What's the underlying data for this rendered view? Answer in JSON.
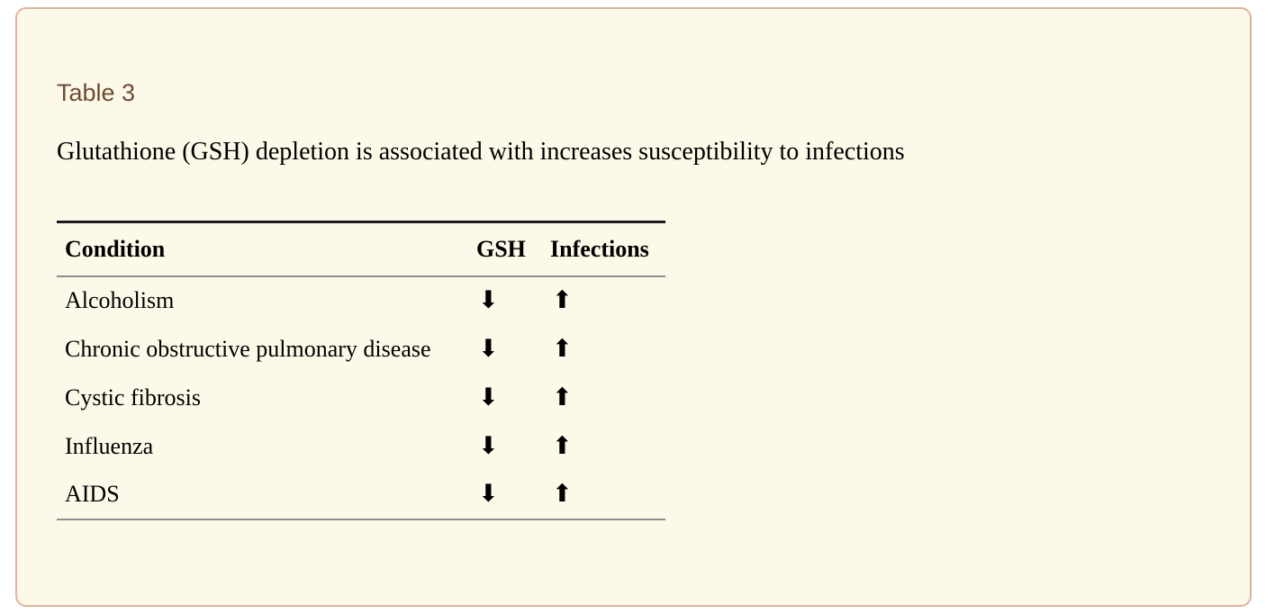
{
  "card": {
    "table_label": "Table 3",
    "caption": "Glutathione (GSH) depletion is associated with increases susceptibility to infections"
  },
  "table": {
    "headers": {
      "condition": "Condition",
      "gsh": "GSH",
      "infections": "Infections"
    },
    "rows": [
      {
        "condition": "Alcoholism",
        "gsh": "decreased",
        "gsh_glyph": "⬇",
        "infections": "increased",
        "infections_glyph": "⬆"
      },
      {
        "condition": "Chronic obstructive pulmonary disease",
        "gsh": "decreased",
        "gsh_glyph": "⬇",
        "infections": "increased",
        "infections_glyph": "⬆"
      },
      {
        "condition": "Cystic fibrosis",
        "gsh": "decreased",
        "gsh_glyph": "⬇",
        "infections": "increased",
        "infections_glyph": "⬆"
      },
      {
        "condition": "Influenza",
        "gsh": "decreased",
        "gsh_glyph": "⬇",
        "infections": "increased",
        "infections_glyph": "⬆"
      },
      {
        "condition": "AIDS",
        "gsh": "decreased",
        "gsh_glyph": "⬇",
        "infections": "increased",
        "infections_glyph": "⬆"
      }
    ]
  },
  "colors": {
    "card_background": "#fdf9e8",
    "card_border": "#dcb49e",
    "table_label_text": "#6e4b33",
    "rule_dark": "#1a1a1a",
    "rule_gray": "#8c8c8c",
    "text": "#000000"
  }
}
